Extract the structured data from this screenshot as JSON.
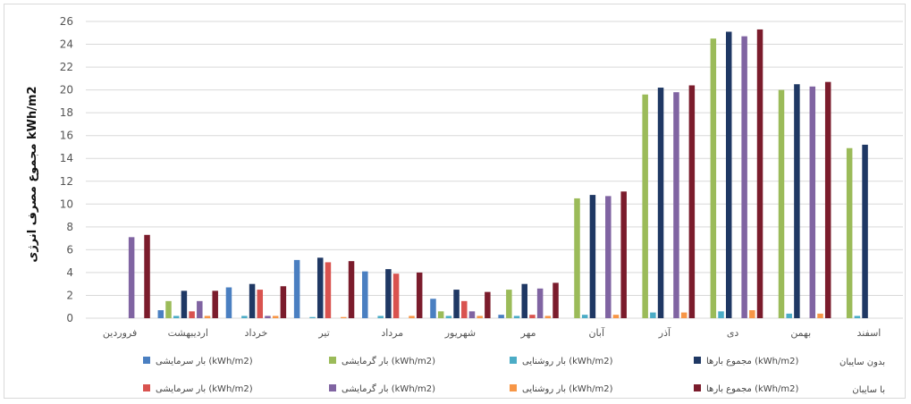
{
  "chart_data": {
    "type": "bar",
    "ylabel": "مجموع مصرف انرژی kWh/m2",
    "ylim": [
      0,
      26
    ],
    "yticks": [
      0,
      2,
      4,
      6,
      8,
      10,
      12,
      14,
      16,
      18,
      20,
      22,
      24,
      26
    ],
    "grid": true,
    "legend_position": "bottom",
    "categories": [
      "فروردین",
      "اردیبهشت",
      "خرداد",
      "تیر",
      "مرداد",
      "شهریور",
      "مهر",
      "آبان",
      "آذر",
      "دی",
      "بهمن",
      "اسفند"
    ],
    "groups": [
      {
        "label": "بدون سایبان",
        "color_hint": "without shading"
      },
      {
        "label": "با سایبان",
        "color_hint": "with shading"
      }
    ],
    "series": [
      {
        "name": "بار سرمایشی (kWh/m2)",
        "group": "بدون سایبان",
        "color": "#4a7fc1",
        "values": [
          0,
          0.7,
          2.7,
          5.1,
          4.1,
          1.7,
          0.3,
          0,
          0,
          0,
          0,
          0
        ]
      },
      {
        "name": "بار گرمایشی (kWh/m2)",
        "group": "بدون سایبان",
        "color": "#9bbb59",
        "values": [
          0,
          1.5,
          0,
          0,
          0,
          0.6,
          2.5,
          10.5,
          19.6,
          24.5,
          20.0,
          14.9
        ]
      },
      {
        "name": "بار روشنایی (kWh/m2)",
        "group": "بدون سایبان",
        "color": "#4bacc6",
        "values": [
          0,
          0.2,
          0.2,
          0.1,
          0.2,
          0.2,
          0.2,
          0.3,
          0.5,
          0.6,
          0.4,
          0.2
        ]
      },
      {
        "name": "مجموع بارها (kWh/m2)",
        "group": "بدون سایبان",
        "color": "#1f3864",
        "values": [
          0,
          2.4,
          3.0,
          5.3,
          4.3,
          2.5,
          3.0,
          10.8,
          20.2,
          25.1,
          20.5,
          15.2
        ]
      },
      {
        "name": "بار سرمایشی (kWh/m2)",
        "group": "با سایبان",
        "color": "#d9534f",
        "values": [
          0,
          0.6,
          2.5,
          4.9,
          3.9,
          1.5,
          0.3,
          0,
          0,
          0,
          0,
          0
        ]
      },
      {
        "name": "بار گرمایشی (kWh/m2)",
        "group": "با سایبان",
        "color": "#8064a2",
        "values": [
          7.1,
          1.5,
          0.2,
          0,
          0,
          0.6,
          2.6,
          10.7,
          19.8,
          24.7,
          20.3,
          0
        ]
      },
      {
        "name": "بار روشنایی (kWh/m2)",
        "group": "با سایبان",
        "color": "#f79646",
        "values": [
          0,
          0.2,
          0.2,
          0.1,
          0.2,
          0.2,
          0.2,
          0.3,
          0.5,
          0.7,
          0.4,
          0
        ]
      },
      {
        "name": "مجموع بارها (kWh/m2)",
        "group": "با سایبان",
        "color": "#7b1c2c",
        "values": [
          7.3,
          2.4,
          2.8,
          5.0,
          4.0,
          2.3,
          3.1,
          11.1,
          20.4,
          25.3,
          20.7,
          0
        ]
      }
    ]
  }
}
